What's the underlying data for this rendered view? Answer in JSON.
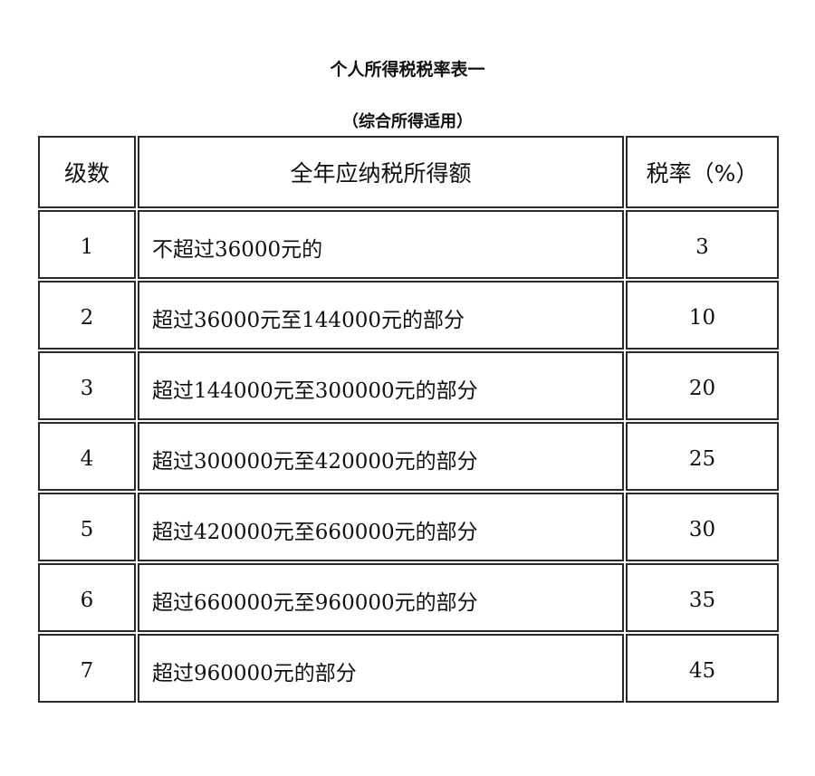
{
  "title": "个人所得税税率表一",
  "subtitle": "（综合所得适用）",
  "table": {
    "headers": [
      "级数",
      "全年应纳税所得额",
      "税率（%）"
    ],
    "rows": [
      {
        "level": "1",
        "range": "不超过36000元的",
        "rate": "3"
      },
      {
        "level": "2",
        "range": "超过36000元至144000元的部分",
        "rate": "10"
      },
      {
        "level": "3",
        "range": "超过144000元至300000元的部分",
        "rate": "20"
      },
      {
        "level": "4",
        "range": "超过300000元至420000元的部分",
        "rate": "25"
      },
      {
        "level": "5",
        "range": "超过420000元至660000元的部分",
        "rate": "30"
      },
      {
        "level": "6",
        "range": "超过660000元至960000元的部分",
        "rate": "35"
      },
      {
        "level": "7",
        "range": "超过960000元的部分",
        "rate": "45"
      }
    ]
  }
}
